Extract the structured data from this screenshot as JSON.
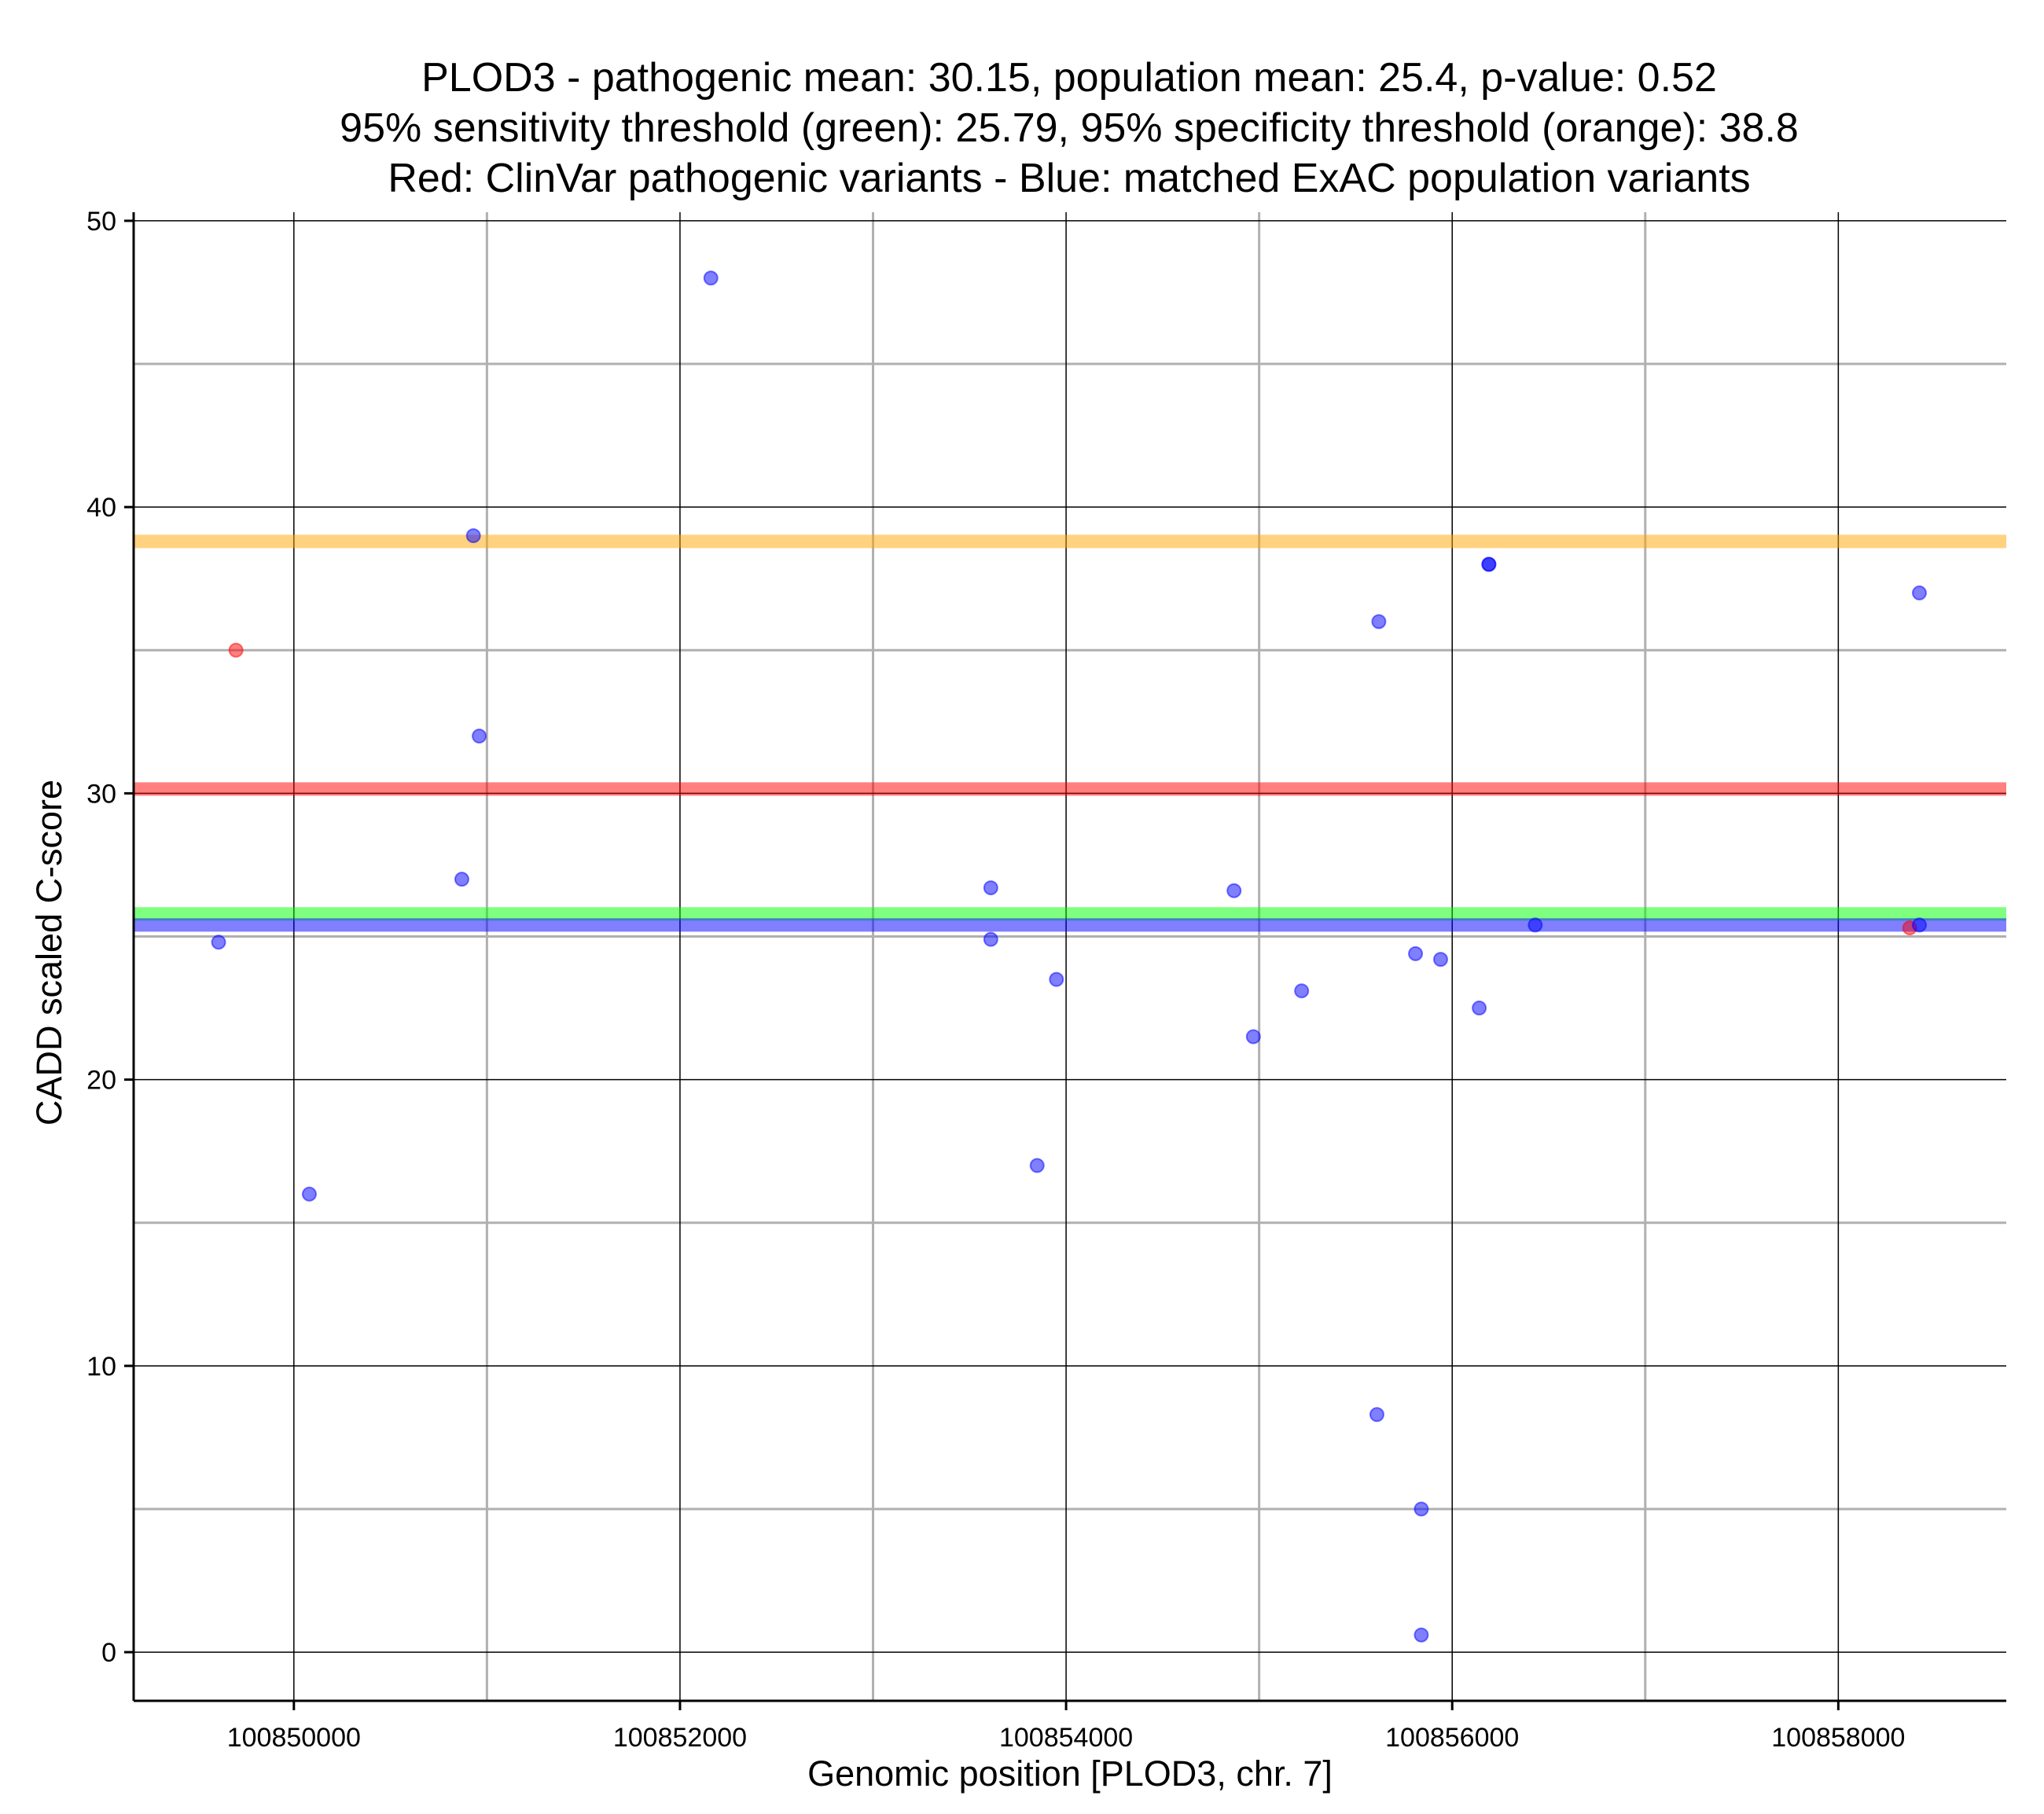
{
  "chart_data": {
    "type": "scatter",
    "title_lines": [
      "PLOD3 - pathogenic mean: 30.15, population mean: 25.4, p-value: 0.52",
      "95% sensitivity threshold (green): 25.79, 95% specificity threshold (orange): 38.8",
      "Red: ClinVar pathogenic variants - Blue: matched ExAC population variants"
    ],
    "xlabel": "Genomic position [PLOD3, chr. 7]",
    "ylabel": "CADD scaled C-score",
    "xlim": [
      100849170,
      100858870
    ],
    "ylim": [
      -1.7,
      50.3
    ],
    "x_ticks": [
      100850000,
      100852000,
      100854000,
      100856000,
      100858000
    ],
    "x_tick_labels": [
      "100850000",
      "100852000",
      "100854000",
      "100856000",
      "100858000"
    ],
    "x_minor_grid": [
      100851000,
      100853000,
      100855000,
      100857000
    ],
    "y_ticks": [
      0,
      10,
      20,
      30,
      40,
      50
    ],
    "y_tick_labels": [
      "0",
      "10",
      "20",
      "30",
      "40",
      "50"
    ],
    "y_minor_grid": [
      5,
      15,
      25,
      35,
      45
    ],
    "grid": true,
    "reference_lines": [
      {
        "name": "95% specificity threshold",
        "y": 38.8,
        "color": "#ffa500"
      },
      {
        "name": "pathogenic mean",
        "y": 30.15,
        "color": "#ff0000"
      },
      {
        "name": "95% sensitivity threshold",
        "y": 25.79,
        "color": "#00ff00"
      },
      {
        "name": "population mean",
        "y": 25.4,
        "color": "#0000ff"
      }
    ],
    "series": [
      {
        "name": "ClinVar pathogenic variants",
        "color": "#ff0000",
        "points": [
          {
            "x": 100849700,
            "y": 35.0
          },
          {
            "x": 100858370,
            "y": 25.3
          }
        ]
      },
      {
        "name": "matched ExAC population variants",
        "color": "#0000ff",
        "points": [
          {
            "x": 100849610,
            "y": 24.8
          },
          {
            "x": 100850080,
            "y": 16.0
          },
          {
            "x": 100850870,
            "y": 27.0
          },
          {
            "x": 100850930,
            "y": 39.0
          },
          {
            "x": 100850960,
            "y": 32.0
          },
          {
            "x": 100852160,
            "y": 48.0
          },
          {
            "x": 100853610,
            "y": 26.7
          },
          {
            "x": 100853610,
            "y": 24.9
          },
          {
            "x": 100853850,
            "y": 17.0
          },
          {
            "x": 100853950,
            "y": 23.5
          },
          {
            "x": 100854870,
            "y": 26.6
          },
          {
            "x": 100854970,
            "y": 21.5
          },
          {
            "x": 100855220,
            "y": 23.1
          },
          {
            "x": 100855610,
            "y": 8.3
          },
          {
            "x": 100855620,
            "y": 36.0
          },
          {
            "x": 100855810,
            "y": 24.4
          },
          {
            "x": 100855840,
            "y": 5.0
          },
          {
            "x": 100855840,
            "y": 0.6
          },
          {
            "x": 100855940,
            "y": 24.2
          },
          {
            "x": 100856140,
            "y": 22.5
          },
          {
            "x": 100856190,
            "y": 38.0
          },
          {
            "x": 100856190,
            "y": 38.0
          },
          {
            "x": 100856430,
            "y": 25.4
          },
          {
            "x": 100858420,
            "y": 25.4
          },
          {
            "x": 100858420,
            "y": 37.0
          }
        ]
      }
    ]
  }
}
